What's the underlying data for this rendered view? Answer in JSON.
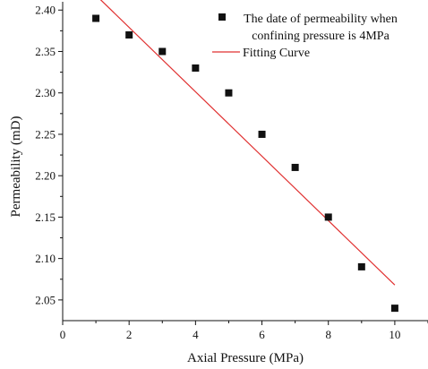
{
  "chart_data": {
    "type": "scatter",
    "xlabel": "Axial Pressure (MPa)",
    "ylabel": "Permeability (mD)",
    "xlim": [
      0,
      11
    ],
    "ylim": [
      2.025,
      2.41
    ],
    "x_ticks": [
      0,
      2,
      4,
      6,
      8,
      10
    ],
    "y_ticks": [
      2.05,
      2.1,
      2.15,
      2.2,
      2.25,
      2.3,
      2.35,
      2.4
    ],
    "x_tick_labels": [
      "0",
      "2",
      "4",
      "6",
      "8",
      "10"
    ],
    "y_tick_labels": [
      "2.05",
      "2.10",
      "2.15",
      "2.20",
      "2.25",
      "2.30",
      "2.35",
      "2.40"
    ],
    "legend_placement": "top-right",
    "grid": false,
    "series": [
      {
        "name": "The date of permeability when confining pressure is 4MPa",
        "legend_lines": [
          "The date of permeability when",
          "confining pressure is 4MPa"
        ],
        "kind": "scatter",
        "marker": "square",
        "color": "#111111",
        "x": [
          1,
          2,
          3,
          4,
          5,
          6,
          7,
          8,
          9,
          10
        ],
        "y": [
          2.39,
          2.37,
          2.35,
          2.33,
          2.3,
          2.25,
          2.21,
          2.15,
          2.09,
          2.04
        ]
      },
      {
        "name": "Fitting Curve",
        "kind": "line",
        "color": "#e03030",
        "x": [
          1,
          10
        ],
        "y": [
          2.418,
          2.068
        ]
      }
    ]
  }
}
